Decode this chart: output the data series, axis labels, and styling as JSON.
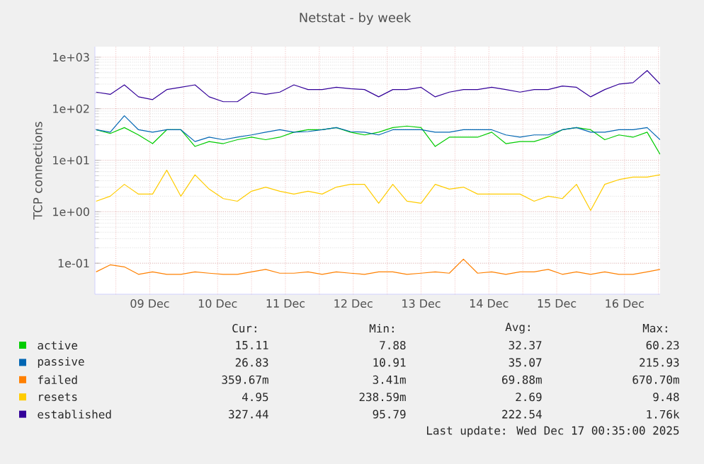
{
  "chart_data": {
    "type": "line",
    "title": "Netstat - by week",
    "ylabel": "TCP connections",
    "x": [
      "2025-12-08T17:00",
      "2025-12-08T22:00",
      "2025-12-09T03:00",
      "2025-12-09T08:00",
      "2025-12-09T13:00",
      "2025-12-09T18:00",
      "2025-12-09T23:00",
      "2025-12-10T04:00",
      "2025-12-10T09:00",
      "2025-12-10T14:00",
      "2025-12-10T19:00",
      "2025-12-11T00:00",
      "2025-12-11T05:00",
      "2025-12-11T10:00",
      "2025-12-11T15:00",
      "2025-12-11T20:00",
      "2025-12-12T01:00",
      "2025-12-12T06:00",
      "2025-12-12T11:00",
      "2025-12-12T16:00",
      "2025-12-12T21:00",
      "2025-12-13T02:00",
      "2025-12-13T07:00",
      "2025-12-13T12:00",
      "2025-12-13T17:00",
      "2025-12-13T22:00",
      "2025-12-14T03:00",
      "2025-12-14T08:00",
      "2025-12-14T13:00",
      "2025-12-14T18:00",
      "2025-12-14T23:00",
      "2025-12-15T04:00",
      "2025-12-15T09:00",
      "2025-12-15T14:00",
      "2025-12-15T19:00",
      "2025-12-16T00:00",
      "2025-12-16T05:00",
      "2025-12-16T10:00",
      "2025-12-16T15:00",
      "2025-12-16T20:00",
      "2025-12-17T00:35"
    ],
    "series": [
      {
        "name": "active",
        "color": "#00cc00",
        "values": [
          39,
          33,
          43,
          31,
          21,
          39,
          39,
          18.5,
          23,
          21,
          25,
          28,
          25,
          28,
          35,
          39,
          39,
          43,
          35,
          31,
          35,
          43,
          46,
          43,
          18.5,
          28,
          28,
          28,
          35,
          21,
          23,
          23,
          28,
          39,
          43,
          39,
          25,
          31,
          28,
          35,
          13
        ]
      },
      {
        "name": "passive",
        "color": "#0066b3",
        "values": [
          39,
          35,
          73,
          39,
          35,
          39,
          39,
          23,
          28,
          25,
          28,
          31,
          35,
          39,
          35,
          36,
          39,
          43,
          36,
          35,
          31,
          39,
          39,
          39,
          35,
          35,
          39,
          39,
          39,
          31,
          28,
          31,
          31,
          39,
          43,
          35,
          35,
          39,
          39,
          43,
          25
        ]
      },
      {
        "name": "failed",
        "color": "#ff8000",
        "values": [
          0.068,
          0.093,
          0.085,
          0.061,
          0.068,
          0.061,
          0.061,
          0.068,
          0.064,
          0.061,
          0.061,
          0.068,
          0.076,
          0.064,
          0.064,
          0.068,
          0.061,
          0.068,
          0.064,
          0.061,
          0.068,
          0.068,
          0.061,
          0.064,
          0.068,
          0.064,
          0.12,
          0.064,
          0.068,
          0.061,
          0.068,
          0.068,
          0.076,
          0.061,
          0.068,
          0.061,
          0.068,
          0.061,
          0.061,
          0.068,
          0.076
        ]
      },
      {
        "name": "resets",
        "color": "#ffcc00",
        "values": [
          1.6,
          2.0,
          3.4,
          2.2,
          2.2,
          6.4,
          2.0,
          5.2,
          2.75,
          1.8,
          1.6,
          2.5,
          3.0,
          2.5,
          2.2,
          2.5,
          2.2,
          3.0,
          3.4,
          3.4,
          1.46,
          3.4,
          1.6,
          1.46,
          3.4,
          2.75,
          3.0,
          2.2,
          2.2,
          2.2,
          2.2,
          1.6,
          2.0,
          1.8,
          3.4,
          1.06,
          3.4,
          4.2,
          4.7,
          4.7,
          5.2
        ]
      },
      {
        "name": "established",
        "color": "#330099",
        "values": [
          210,
          190,
          290,
          170,
          150,
          235,
          260,
          290,
          170,
          137,
          137,
          210,
          190,
          210,
          290,
          235,
          235,
          260,
          245,
          235,
          170,
          235,
          235,
          260,
          170,
          210,
          235,
          235,
          260,
          235,
          210,
          235,
          235,
          275,
          260,
          170,
          235,
          300,
          320,
          550,
          300
        ]
      }
    ],
    "log": "y",
    "ylim": [
      0.025,
      1600
    ],
    "yticks": [
      {
        "value": 0.1,
        "label": "1e-01"
      },
      {
        "value": 1,
        "label": "1e+00"
      },
      {
        "value": 10,
        "label": "1e+01"
      },
      {
        "value": 100,
        "label": "1e+02"
      },
      {
        "value": 1000,
        "label": "1e+03"
      }
    ],
    "xlim": [
      "2025-12-08T16:35",
      "2025-12-17T00:35"
    ],
    "xticks": [
      {
        "value": "2025-12-09T00:00",
        "label": null
      },
      {
        "value": "2025-12-09T12:00",
        "label": "09 Dec"
      },
      {
        "value": "2025-12-10T00:00",
        "label": null
      },
      {
        "value": "2025-12-10T12:00",
        "label": "10 Dec"
      },
      {
        "value": "2025-12-11T00:00",
        "label": null
      },
      {
        "value": "2025-12-11T12:00",
        "label": "11 Dec"
      },
      {
        "value": "2025-12-12T00:00",
        "label": null
      },
      {
        "value": "2025-12-12T12:00",
        "label": "12 Dec"
      },
      {
        "value": "2025-12-13T00:00",
        "label": null
      },
      {
        "value": "2025-12-13T12:00",
        "label": "13 Dec"
      },
      {
        "value": "2025-12-14T00:00",
        "label": null
      },
      {
        "value": "2025-12-14T12:00",
        "label": "14 Dec"
      },
      {
        "value": "2025-12-15T00:00",
        "label": null
      },
      {
        "value": "2025-12-15T12:00",
        "label": "15 Dec"
      },
      {
        "value": "2025-12-16T00:00",
        "label": null
      },
      {
        "value": "2025-12-16T12:00",
        "label": "16 Dec"
      },
      {
        "value": "2025-12-17T00:00",
        "label": null
      }
    ],
    "grid": true,
    "legend": "bottom",
    "annotations": [
      "Cur:",
      "Min:",
      "Avg:",
      "Max:",
      "15.11",
      "7.88",
      "32.37",
      "60.23",
      "26.83",
      "10.91",
      "35.07",
      "215.93",
      "359.67m",
      "3.41m",
      "69.88m",
      "670.70m",
      "4.95",
      "238.59m",
      "2.69",
      "9.48",
      "327.44",
      "95.79",
      "222.54",
      "1.76k",
      "Last update: Wed Dec 17 00:35:00 2025"
    ]
  }
}
